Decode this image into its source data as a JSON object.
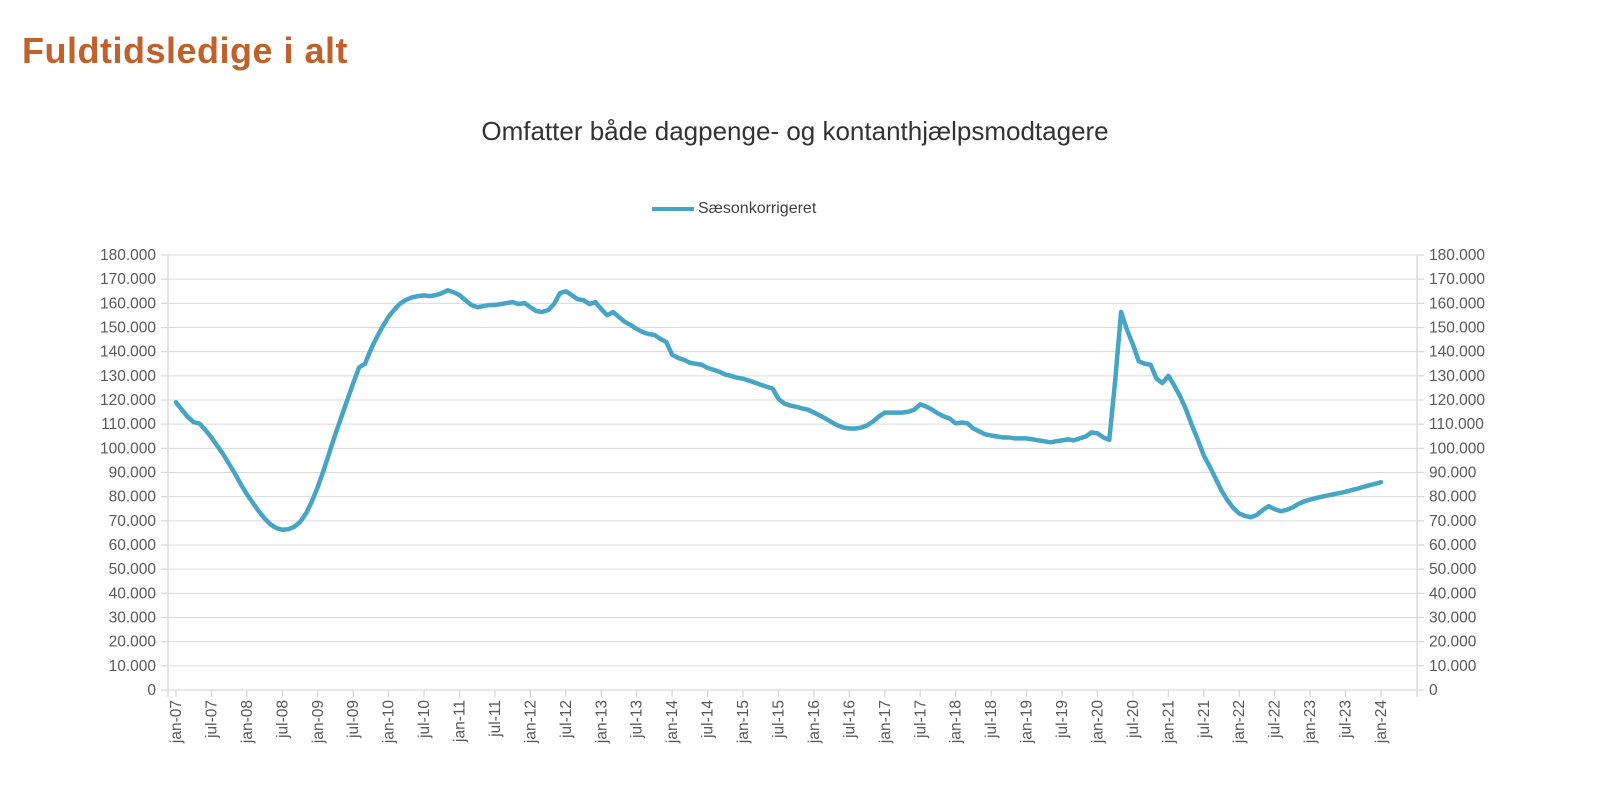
{
  "page": {
    "title": "Fuldtidsledige i alt"
  },
  "colors": {
    "title": "#C0612C",
    "line": "#46A5C5",
    "grid": "#D9D9D9",
    "axis_text": "#595959",
    "subtitle_text": "#333333"
  },
  "chart_data": {
    "type": "line",
    "title": "Omfatter både dagpenge- og kontanthjælpsmodtagere",
    "xlabel": "",
    "ylabel": "",
    "grid": "horizontal",
    "legend_position": "top-center",
    "axes": "dual y axes (left and right, identical scale)",
    "ylim": [
      0,
      180000
    ],
    "y_tick_step": 10000,
    "y_tick_labels": [
      "0",
      "10.000",
      "20.000",
      "30.000",
      "40.000",
      "50.000",
      "60.000",
      "70.000",
      "80.000",
      "90.000",
      "100.000",
      "110.000",
      "120.000",
      "130.000",
      "140.000",
      "150.000",
      "160.000",
      "170.000",
      "180.000"
    ],
    "x_start": "jan-07",
    "x_end": "jan-24",
    "x_frequency": "monthly",
    "x_tick_labels": [
      "jan-07",
      "jul-07",
      "jan-08",
      "jul-08",
      "jan-09",
      "jul-09",
      "jan-10",
      "jul-10",
      "jan-11",
      "jul-11",
      "jan-12",
      "jul-12",
      "jan-13",
      "jul-13",
      "jan-14",
      "jul-14",
      "jan-15",
      "jul-15",
      "jan-16",
      "jul-16",
      "jan-17",
      "jul-17",
      "jan-18",
      "jul-18",
      "jan-19",
      "jul-19",
      "jan-20",
      "jul-20",
      "jan-21",
      "jul-21",
      "jan-22",
      "jul-22",
      "jan-23",
      "jul-23",
      "jan-24"
    ],
    "series": [
      {
        "name": "Sæsonkorrigeret",
        "color": "#46A5C5",
        "values": [
          119000,
          116000,
          113000,
          110800,
          110200,
          107500,
          104500,
          101000,
          97500,
          93500,
          89500,
          85000,
          81000,
          77500,
          74000,
          71000,
          68500,
          67000,
          66300,
          66500,
          67500,
          69500,
          73000,
          78000,
          84000,
          91000,
          98500,
          106000,
          113000,
          120000,
          127000,
          133500,
          135000,
          141000,
          146000,
          150500,
          154500,
          157500,
          160000,
          161500,
          162500,
          163000,
          163300,
          163000,
          163400,
          164200,
          165400,
          164600,
          163400,
          161300,
          159300,
          158400,
          158800,
          159300,
          159300,
          159700,
          160100,
          160500,
          159700,
          160100,
          158400,
          156800,
          156400,
          157200,
          159700,
          164200,
          165000,
          163400,
          161700,
          161300,
          159700,
          160500,
          157600,
          155100,
          156400,
          154300,
          152300,
          151000,
          149400,
          148100,
          147300,
          146900,
          145300,
          144000,
          138700,
          137400,
          136600,
          135400,
          135000,
          134600,
          133300,
          132500,
          131700,
          130500,
          130000,
          129200,
          128800,
          128000,
          127200,
          126300,
          125500,
          124700,
          120500,
          118500,
          117700,
          117200,
          116500,
          116000,
          114800,
          113600,
          112300,
          110800,
          109500,
          108600,
          108200,
          108200,
          108600,
          109500,
          111100,
          113200,
          114800,
          114800,
          114800,
          114800,
          115200,
          116000,
          118200,
          117300,
          116000,
          114400,
          113200,
          112300,
          110300,
          110700,
          110300,
          108200,
          107000,
          105800,
          105300,
          104900,
          104500,
          104500,
          104100,
          104100,
          104100,
          103700,
          103300,
          102900,
          102500,
          102900,
          103300,
          103700,
          103300,
          104100,
          104900,
          106600,
          106200,
          104500,
          103500,
          128000,
          156400,
          149000,
          143000,
          136000,
          135000,
          134600,
          128800,
          127000,
          130000,
          126000,
          121500,
          116000,
          109500,
          103500,
          97000,
          92500,
          87500,
          82500,
          78500,
          75300,
          73000,
          72000,
          71500,
          72500,
          74500,
          76100,
          74800,
          74000,
          74500,
          75500,
          77000,
          78000,
          78800,
          79400,
          80000,
          80500,
          81000,
          81500,
          82000,
          82700,
          83300,
          84000,
          84700,
          85300,
          86000
        ]
      }
    ]
  }
}
